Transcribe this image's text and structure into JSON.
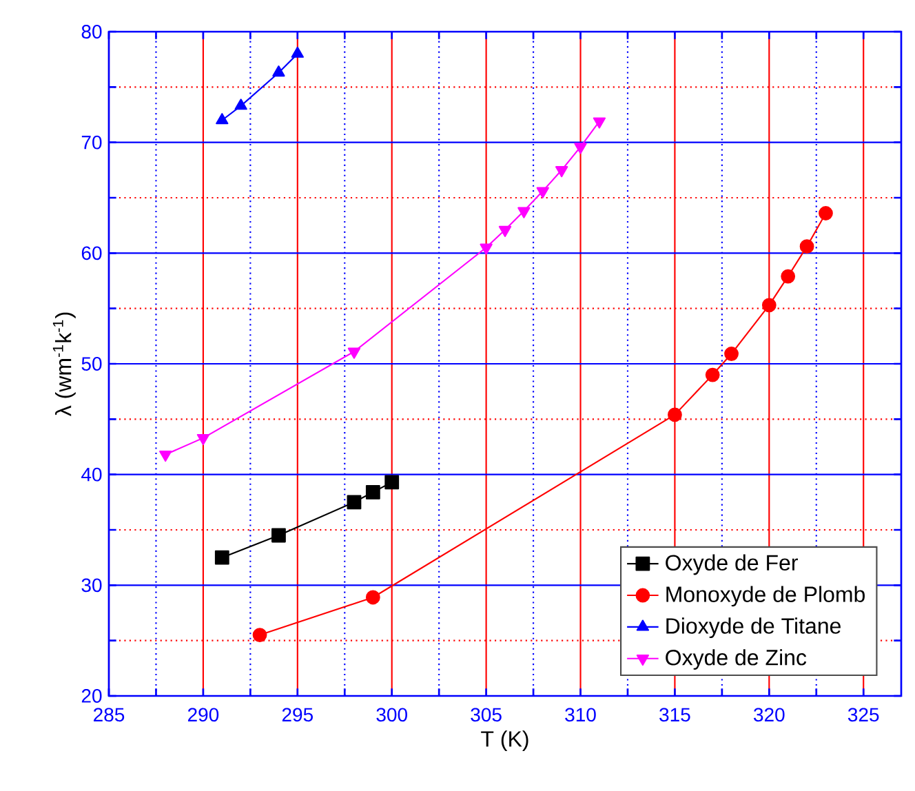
{
  "chart_data": {
    "type": "line",
    "xlabel": "T (K)",
    "ylabel": "λ (wm$^{-1}$k$^{-1}$)",
    "xlim": [
      285,
      327
    ],
    "ylim": [
      20,
      80
    ],
    "xticks": [
      285,
      {
        "value": 287.5,
        "label": null
      },
      290,
      {
        "value": 292.5,
        "label": null
      },
      295,
      {
        "value": 297.5,
        "label": null
      },
      300,
      {
        "value": 302.5,
        "label": null
      },
      305,
      {
        "value": 307.5,
        "label": null
      },
      310,
      {
        "value": 312.5,
        "label": null
      },
      315,
      {
        "value": 317.5,
        "label": null
      },
      320,
      {
        "value": 322.5,
        "label": null
      },
      325
    ],
    "yticks": [
      20,
      {
        "value": 25,
        "label": null
      },
      30,
      {
        "value": 35,
        "label": null
      },
      40,
      {
        "value": 45,
        "label": null
      },
      50,
      {
        "value": 55,
        "label": null
      },
      60,
      {
        "value": 65,
        "label": null
      },
      70,
      {
        "value": 75,
        "label": null
      },
      80
    ],
    "grid": true,
    "legend": "bottom right",
    "series": [
      {
        "name": "Oxyde de Fer",
        "color": "#000000",
        "marker": "square",
        "x": [
          291,
          294,
          298,
          299,
          300
        ],
        "values": [
          32.5,
          34.5,
          37.5,
          38.4,
          39.3
        ]
      },
      {
        "name": "Monoxyde de Plomb",
        "color": "#ff0000",
        "marker": "circle",
        "x": [
          293,
          299,
          315,
          317,
          318,
          320,
          321,
          322,
          323
        ],
        "values": [
          25.5,
          28.9,
          45.4,
          49.0,
          50.9,
          55.3,
          57.9,
          60.6,
          63.6
        ]
      },
      {
        "name": "Dioxyde de Titane",
        "color": "#0000ff",
        "marker": "triangle",
        "x": [
          291,
          292,
          294,
          295
        ],
        "values": [
          72.0,
          73.3,
          76.3,
          78.0
        ]
      },
      {
        "name": "Oxyde de Zinc",
        "color": "#ff00ff",
        "marker": "triangle down",
        "x": [
          288,
          290,
          298,
          305,
          306,
          307,
          308,
          309,
          310,
          311
        ],
        "values": [
          41.8,
          43.3,
          51.1,
          60.5,
          62.1,
          63.8,
          65.6,
          67.5,
          69.6,
          71.9
        ]
      }
    ]
  }
}
